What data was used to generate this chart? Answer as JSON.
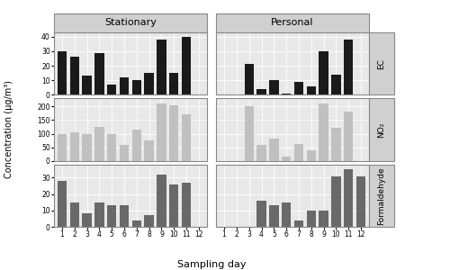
{
  "stationary_EC": [
    30,
    26,
    13,
    29,
    7,
    12,
    10,
    15,
    38,
    15,
    40,
    null
  ],
  "personal_EC": [
    null,
    null,
    21,
    4,
    10,
    1,
    9,
    6,
    30,
    14,
    38,
    null
  ],
  "stationary_NO2": [
    100,
    105,
    100,
    125,
    100,
    60,
    115,
    75,
    210,
    205,
    170,
    null
  ],
  "personal_NO2": [
    null,
    null,
    200,
    60,
    82,
    15,
    63,
    40,
    210,
    120,
    180,
    null
  ],
  "stationary_HCHO": [
    28,
    15,
    8,
    15,
    13,
    13,
    4,
    7,
    32,
    26,
    27,
    null
  ],
  "personal_HCHO": [
    null,
    null,
    null,
    16,
    13,
    15,
    4,
    10,
    10,
    31,
    35,
    31
  ],
  "days": [
    1,
    2,
    3,
    4,
    5,
    6,
    7,
    8,
    9,
    10,
    11,
    12
  ],
  "ec_ylim": [
    0,
    43
  ],
  "no2_ylim": [
    0,
    230
  ],
  "hcho_ylim": [
    0,
    38
  ],
  "ec_yticks": [
    0,
    10,
    20,
    30,
    40
  ],
  "no2_yticks": [
    0,
    50,
    100,
    150,
    200
  ],
  "hcho_yticks": [
    0,
    10,
    20,
    30
  ],
  "color_EC": "#1a1a1a",
  "color_NO2": "#c0c0c0",
  "color_HCHO": "#696969",
  "bg_color": "#e8e8e8",
  "panel_header_color": "#d0d0d0",
  "label_stationary": "Stationary",
  "label_personal": "Personal",
  "ylabel": "Concentration (µg/m³)",
  "xlabel": "Sampling day",
  "row_labels": [
    "EC",
    "NO₂",
    "Formaldehyde"
  ]
}
